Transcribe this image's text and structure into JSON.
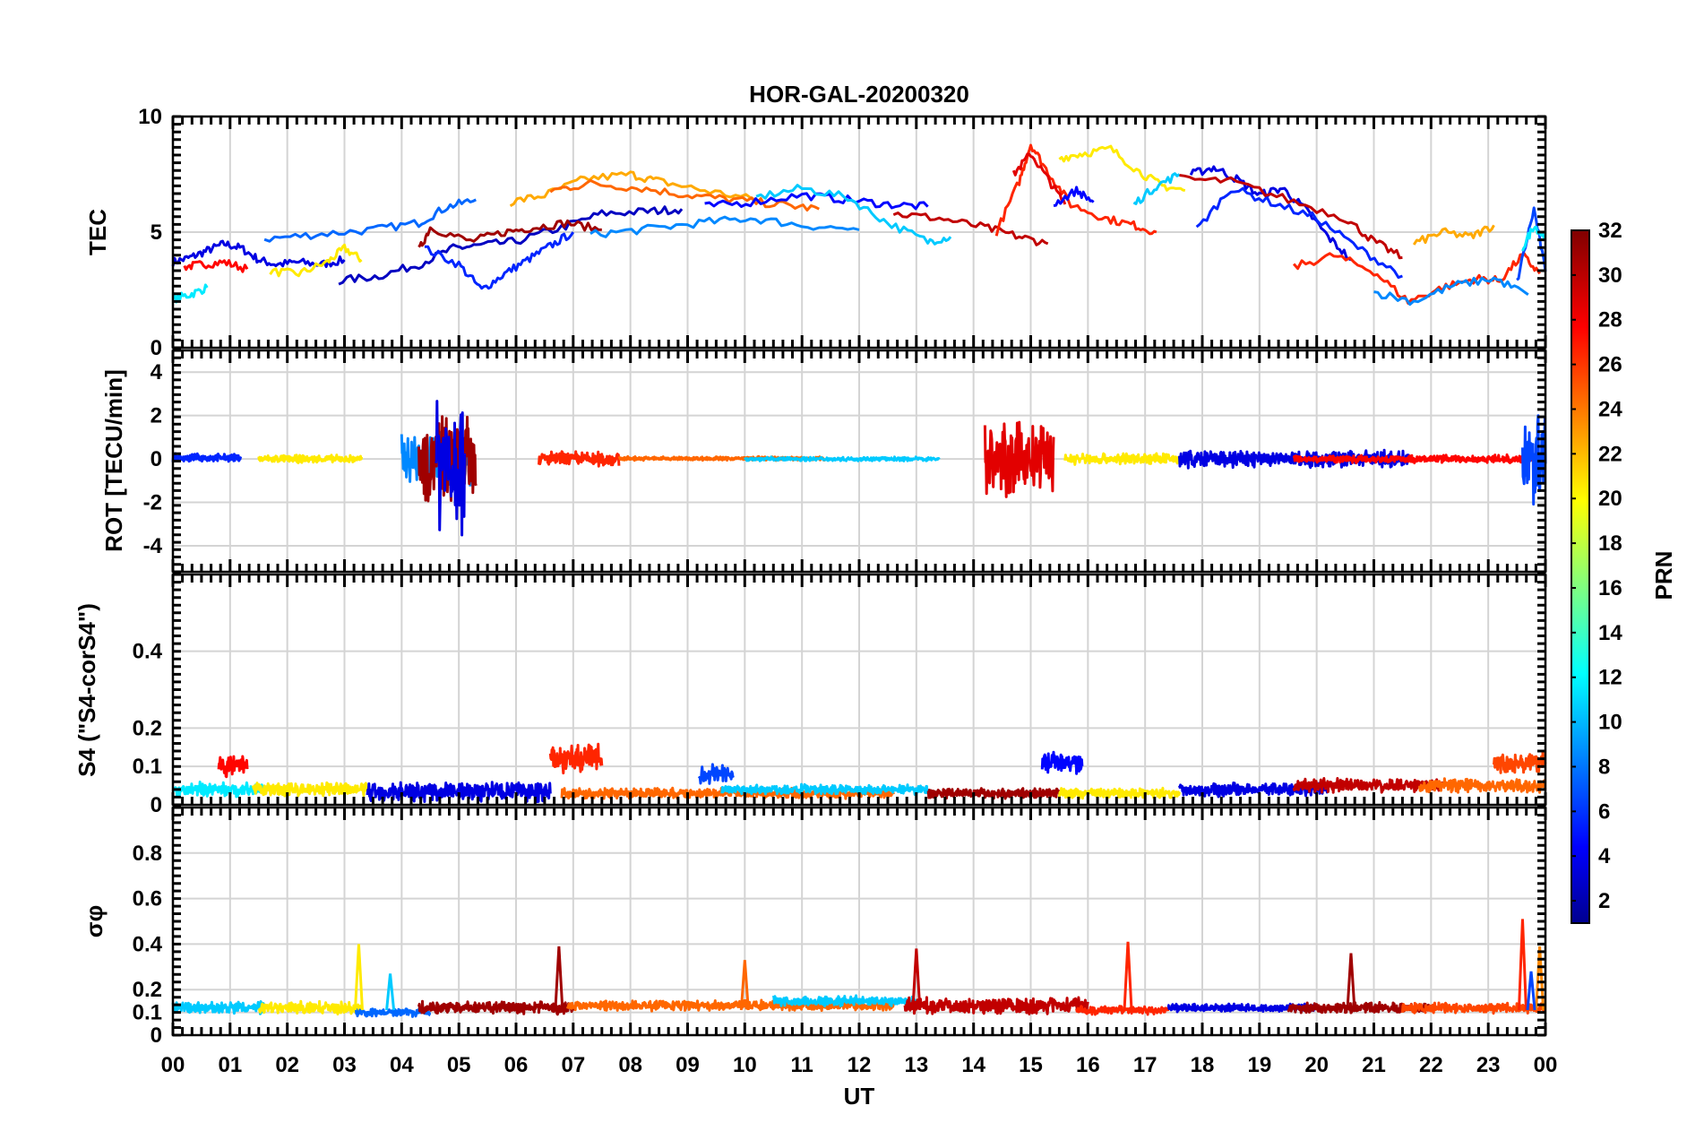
{
  "chart_data": {
    "title": "HOR-GAL-20200320",
    "xlabel": "UT",
    "x_ticks": [
      "00",
      "01",
      "02",
      "03",
      "04",
      "05",
      "06",
      "07",
      "08",
      "09",
      "10",
      "11",
      "12",
      "13",
      "14",
      "15",
      "16",
      "17",
      "18",
      "19",
      "20",
      "21",
      "22",
      "23",
      "00"
    ],
    "xlim_hours": [
      0,
      24
    ],
    "grid": true,
    "colorbar": {
      "label": "PRN",
      "range": [
        1,
        32
      ],
      "ticks": [
        "2",
        "4",
        "6",
        "8",
        "10",
        "12",
        "14",
        "16",
        "18",
        "20",
        "22",
        "24",
        "26",
        "28",
        "30",
        "32"
      ],
      "colormap": "jet"
    },
    "panels": [
      {
        "name": "tec",
        "type": "line",
        "ylabel": "TEC",
        "ylim": [
          0,
          10
        ],
        "yticks": [
          "0",
          "5",
          "10"
        ],
        "series": [
          {
            "prn": 4,
            "x": [
              0,
              0.3,
              0.6,
              0.9,
              1.2,
              1.5,
              1.8,
              2.2,
              2.6,
              3.0
            ],
            "y": [
              3.7,
              3.9,
              4.2,
              4.5,
              4.3,
              3.8,
              3.6,
              3.7,
              3.6,
              3.8
            ]
          },
          {
            "prn": 28,
            "x": [
              0.2,
              0.5,
              0.9,
              1.3
            ],
            "y": [
              3.5,
              3.6,
              3.7,
              3.4
            ]
          },
          {
            "prn": 12,
            "x": [
              0,
              0.3,
              0.6
            ],
            "y": [
              2.1,
              2.3,
              2.6
            ]
          },
          {
            "prn": 21,
            "x": [
              1.7,
              2.2,
              2.7,
              3.0,
              3.3
            ],
            "y": [
              3.3,
              3.2,
              3.7,
              4.3,
              3.8
            ]
          },
          {
            "prn": 8,
            "x": [
              1.6,
              2.5,
              3.5,
              4.3,
              4.8,
              5.3
            ],
            "y": [
              4.7,
              4.9,
              5.1,
              5.4,
              6.1,
              6.4
            ]
          },
          {
            "prn": 3,
            "x": [
              2.9,
              3.6,
              4.3,
              4.9,
              5.3,
              6.0,
              6.8,
              7.5,
              8.3,
              8.9
            ],
            "y": [
              2.9,
              3.1,
              3.6,
              4.3,
              4.4,
              4.6,
              5.2,
              5.8,
              5.9,
              6.0
            ]
          },
          {
            "prn": 6,
            "x": [
              4.4,
              5.0,
              5.4,
              5.8,
              6.2,
              6.6,
              7.0
            ],
            "y": [
              4.3,
              3.6,
              2.5,
              3.2,
              3.8,
              4.4,
              5.0
            ]
          },
          {
            "prn": 31,
            "x": [
              4.3,
              4.5,
              5.2,
              5.8,
              6.3,
              6.9,
              7.5
            ],
            "y": [
              4.2,
              5.2,
              4.6,
              5.0,
              5.2,
              5.4,
              5.1
            ]
          },
          {
            "prn": 23,
            "x": [
              5.9,
              6.5,
              7.2,
              8.0,
              8.5,
              9.3,
              10.2
            ],
            "y": [
              6.3,
              6.6,
              7.3,
              7.5,
              7.2,
              6.8,
              6.4
            ]
          },
          {
            "prn": 25,
            "x": [
              6.6,
              7.3,
              8.2,
              9.0,
              9.8,
              10.6,
              11.3
            ],
            "y": [
              6.8,
              7.1,
              6.9,
              6.6,
              6.4,
              6.2,
              6.0
            ]
          },
          {
            "prn": 9,
            "x": [
              7.3,
              8.2,
              9.2,
              10.1,
              11.0,
              12.0
            ],
            "y": [
              4.9,
              5.1,
              5.4,
              5.6,
              5.3,
              5.1
            ]
          },
          {
            "prn": 5,
            "x": [
              9.3,
              10.1,
              11.0,
              11.8,
              12.5,
              13.2
            ],
            "y": [
              6.1,
              6.3,
              6.6,
              6.4,
              6.2,
              6.1
            ]
          },
          {
            "prn": 11,
            "x": [
              10.2,
              11.0,
              11.8,
              12.5,
              13.2,
              13.6
            ],
            "y": [
              6.5,
              6.9,
              6.5,
              5.4,
              4.6,
              4.8
            ]
          },
          {
            "prn": 30,
            "x": [
              12.6,
              13.4,
              14.2,
              14.8,
              15.3
            ],
            "y": [
              5.8,
              5.6,
              5.2,
              4.8,
              4.5
            ]
          },
          {
            "prn": 27,
            "x": [
              14.4,
              14.8,
              15.0,
              15.3,
              15.7,
              16.3,
              16.8,
              17.2
            ],
            "y": [
              5.0,
              7.2,
              8.8,
              7.6,
              6.2,
              5.6,
              5.3,
              5.0
            ]
          },
          {
            "prn": 29,
            "x": [
              14.7,
              15.0,
              15.3,
              15.6
            ],
            "y": [
              7.5,
              8.4,
              7.3,
              6.2
            ]
          },
          {
            "prn": 21,
            "x": [
              15.5,
              15.9,
              16.4,
              16.9,
              17.3,
              17.7
            ],
            "y": [
              8.2,
              8.4,
              8.6,
              7.6,
              7.0,
              6.8
            ]
          },
          {
            "prn": 11,
            "x": [
              16.8,
              17.2,
              17.6
            ],
            "y": [
              6.2,
              7.0,
              7.5
            ]
          },
          {
            "prn": 5,
            "x": [
              15.4,
              15.8,
              16.1
            ],
            "y": [
              6.2,
              6.8,
              6.3
            ]
          },
          {
            "prn": 4,
            "x": [
              17.8,
              18.2,
              18.6,
              19.0,
              19.4,
              19.8,
              20.2,
              20.6
            ],
            "y": [
              7.5,
              7.8,
              7.3,
              6.6,
              6.9,
              6.0,
              4.8,
              3.8
            ]
          },
          {
            "prn": 6,
            "x": [
              17.9,
              18.5,
              19.2,
              20.0,
              20.8,
              21.5
            ],
            "y": [
              5.1,
              6.9,
              6.3,
              5.6,
              4.2,
              3.1
            ]
          },
          {
            "prn": 30,
            "x": [
              17.6,
              18.5,
              19.5,
              20.5,
              21.0,
              21.5
            ],
            "y": [
              7.3,
              7.2,
              6.4,
              5.6,
              4.6,
              3.9
            ]
          },
          {
            "prn": 27,
            "x": [
              19.6,
              20.3,
              21.0,
              21.6,
              22.2,
              22.8,
              23.2,
              23.6,
              23.9
            ],
            "y": [
              3.5,
              4.0,
              3.3,
              2.0,
              2.6,
              3.0,
              2.9,
              4.0,
              3.2
            ]
          },
          {
            "prn": 23,
            "x": [
              21.7,
              22.2,
              22.7,
              23.1
            ],
            "y": [
              4.5,
              5.0,
              4.8,
              5.3
            ]
          },
          {
            "prn": 9,
            "x": [
              21.0,
              21.7,
              22.4,
              23.1,
              23.7
            ],
            "y": [
              2.4,
              2.0,
              2.7,
              3.0,
              2.3
            ]
          },
          {
            "prn": 7,
            "x": [
              23.5,
              23.8,
              24.0
            ],
            "y": [
              2.8,
              6.0,
              3.3
            ]
          },
          {
            "prn": 12,
            "x": [
              23.6,
              23.8,
              24.0
            ],
            "y": [
              4.3,
              5.3,
              4.7
            ]
          }
        ]
      },
      {
        "name": "rot",
        "type": "line",
        "ylabel": "ROT [TECU/min]",
        "ylim": [
          -5.2,
          5
        ],
        "yticks": [
          "-4",
          "-2",
          "0",
          "2",
          "4"
        ],
        "series": [
          {
            "prn": 6,
            "x": [
              0,
              1.2
            ],
            "y_center": 0.05,
            "noise": 0.2
          },
          {
            "prn": 21,
            "x": [
              1.5,
              3.3
            ],
            "y_center": 0.0,
            "noise": 0.2
          },
          {
            "prn": 9,
            "x": [
              4.0,
              5.2
            ],
            "y_center": 0.0,
            "noise": 1.5
          },
          {
            "prn": 31,
            "x": [
              4.3,
              5.3
            ],
            "y_center": 0.0,
            "noise": 2.3
          },
          {
            "prn": 4,
            "x": [
              4.6,
              5.1
            ],
            "y_center": 0.0,
            "noise": 3.8
          },
          {
            "prn": 27,
            "x": [
              6.4,
              7.8
            ],
            "y_center": 0.0,
            "noise": 0.4
          },
          {
            "prn": 25,
            "x": [
              7.8,
              11.4
            ],
            "y_center": 0.02,
            "noise": 0.1
          },
          {
            "prn": 11,
            "x": [
              10.0,
              13.4
            ],
            "y_center": 0.0,
            "noise": 0.1
          },
          {
            "prn": 29,
            "x": [
              14.2,
              15.4
            ],
            "y_center": 0.0,
            "noise": 1.9
          },
          {
            "prn": 21,
            "x": [
              15.6,
              17.6
            ],
            "y_center": 0.0,
            "noise": 0.3
          },
          {
            "prn": 4,
            "x": [
              17.6,
              21.6
            ],
            "y_center": 0.0,
            "noise": 0.45
          },
          {
            "prn": 28,
            "x": [
              19.6,
              23.9
            ],
            "y_center": 0.0,
            "noise": 0.2
          },
          {
            "prn": 7,
            "x": [
              23.6,
              24.0
            ],
            "y_center": 0.0,
            "noise": 2.4
          }
        ]
      },
      {
        "name": "s4",
        "type": "line",
        "ylabel": "S4 (\"S4-corS4\")",
        "ylim": [
          0,
          0.6
        ],
        "yticks": [
          "0",
          "0.1",
          "0.2",
          "0.4"
        ],
        "series": [
          {
            "prn": 12,
            "x": [
              0,
              1.6
            ],
            "y_center": 0.04,
            "noise": 0.02
          },
          {
            "prn": 28,
            "x": [
              0.8,
              1.3
            ],
            "y_center": 0.1,
            "noise": 0.03
          },
          {
            "prn": 21,
            "x": [
              1.4,
              3.4
            ],
            "y_center": 0.04,
            "noise": 0.02
          },
          {
            "prn": 4,
            "x": [
              3.4,
              6.6
            ],
            "y_center": 0.035,
            "noise": 0.03
          },
          {
            "prn": 27,
            "x": [
              6.6,
              7.5
            ],
            "y_center": 0.12,
            "noise": 0.04
          },
          {
            "prn": 25,
            "x": [
              6.8,
              12.6
            ],
            "y_center": 0.03,
            "noise": 0.015
          },
          {
            "prn": 7,
            "x": [
              9.2,
              9.8
            ],
            "y_center": 0.08,
            "noise": 0.03
          },
          {
            "prn": 11,
            "x": [
              9.6,
              13.2
            ],
            "y_center": 0.04,
            "noise": 0.015
          },
          {
            "prn": 31,
            "x": [
              13.2,
              15.5
            ],
            "y_center": 0.03,
            "noise": 0.015
          },
          {
            "prn": 5,
            "x": [
              15.2,
              15.9
            ],
            "y_center": 0.11,
            "noise": 0.03
          },
          {
            "prn": 21,
            "x": [
              15.5,
              17.6
            ],
            "y_center": 0.03,
            "noise": 0.015
          },
          {
            "prn": 4,
            "x": [
              17.6,
              20.2
            ],
            "y_center": 0.04,
            "noise": 0.02
          },
          {
            "prn": 30,
            "x": [
              19.6,
              22.2
            ],
            "y_center": 0.05,
            "noise": 0.02
          },
          {
            "prn": 25,
            "x": [
              21.8,
              24.0
            ],
            "y_center": 0.05,
            "noise": 0.02
          },
          {
            "prn": 26,
            "x": [
              23.1,
              24.0
            ],
            "y_center": 0.11,
            "noise": 0.03
          }
        ]
      },
      {
        "name": "sigma-phi",
        "type": "line",
        "ylabel": "σφ",
        "ylim": [
          0,
          1
        ],
        "yticks": [
          "0",
          "0.1",
          "0.2",
          "0.4",
          "0.6",
          "0.8"
        ],
        "series": [
          {
            "prn": 11,
            "x": [
              0,
              1.6
            ],
            "y_center": 0.12,
            "noise": 0.03
          },
          {
            "prn": 21,
            "x": [
              1.5,
              3.3
            ],
            "y_center": 0.12,
            "noise": 0.03
          },
          {
            "prn": 8,
            "x": [
              3.2,
              4.5
            ],
            "y_center": 0.1,
            "noise": 0.02
          },
          {
            "prn": 31,
            "x": [
              4.3,
              7.0
            ],
            "y_center": 0.12,
            "noise": 0.03
          },
          {
            "prn": 25,
            "x": [
              6.9,
              12.6
            ],
            "y_center": 0.13,
            "noise": 0.025
          },
          {
            "prn": 11,
            "x": [
              10.5,
              13.0
            ],
            "y_center": 0.15,
            "noise": 0.025
          },
          {
            "prn": 30,
            "x": [
              12.8,
              16.0
            ],
            "y_center": 0.13,
            "noise": 0.04
          },
          {
            "prn": 27,
            "x": [
              15.8,
              17.4
            ],
            "y_center": 0.11,
            "noise": 0.02
          },
          {
            "prn": 4,
            "x": [
              17.4,
              20.0
            ],
            "y_center": 0.12,
            "noise": 0.02
          },
          {
            "prn": 31,
            "x": [
              19.5,
              22.0
            ],
            "y_center": 0.12,
            "noise": 0.025
          },
          {
            "prn": 26,
            "x": [
              21.5,
              24.0
            ],
            "y_center": 0.12,
            "noise": 0.025
          }
        ],
        "spikes": [
          {
            "prn": 21,
            "x": 3.25,
            "y": 0.4
          },
          {
            "prn": 11,
            "x": 3.8,
            "y": 0.27
          },
          {
            "prn": 31,
            "x": 6.75,
            "y": 0.39
          },
          {
            "prn": 25,
            "x": 10.0,
            "y": 0.33
          },
          {
            "prn": 30,
            "x": 13.0,
            "y": 0.38
          },
          {
            "prn": 27,
            "x": 16.7,
            "y": 0.41
          },
          {
            "prn": 31,
            "x": 20.6,
            "y": 0.36
          },
          {
            "prn": 27,
            "x": 23.6,
            "y": 0.51
          },
          {
            "prn": 24,
            "x": 23.9,
            "y": 0.39
          },
          {
            "prn": 7,
            "x": 23.75,
            "y": 0.28
          }
        ]
      }
    ]
  }
}
